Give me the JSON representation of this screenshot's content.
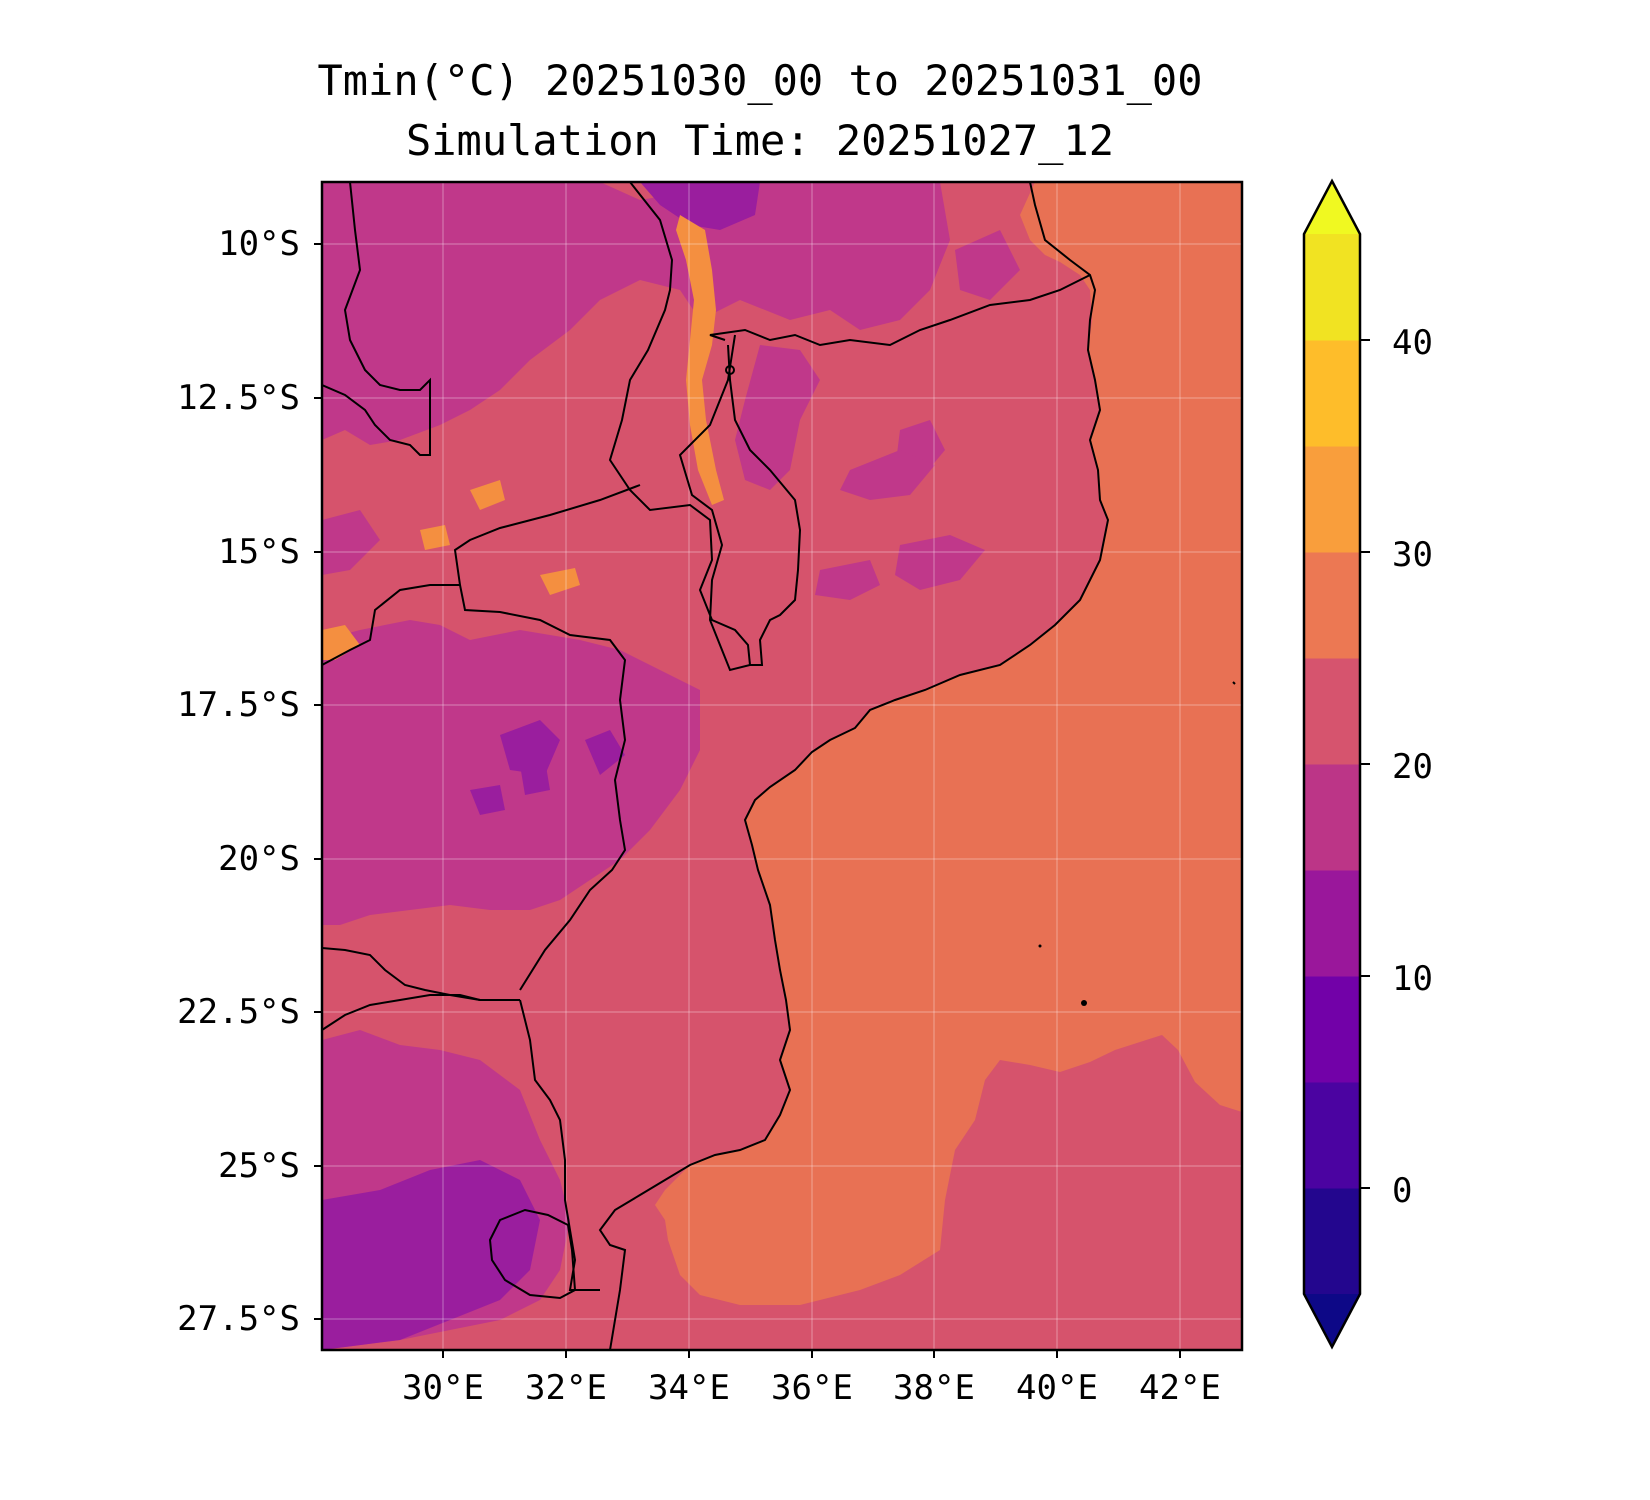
{
  "title": {
    "line1": "Tmin(°C) 20251030_00 to 20251031_00",
    "line2": "Simulation Time: 20251027_12"
  },
  "map": {
    "region": "Mozambique and surrounding southeast Africa",
    "lat_labels": [
      "10°S",
      "12.5°S",
      "15°S",
      "17.5°S",
      "20°S",
      "22.5°S",
      "25°S",
      "27.5°S"
    ],
    "lon_labels": [
      "30°E",
      "32°E",
      "34°E",
      "36°E",
      "38°E",
      "40°E",
      "42°E"
    ],
    "lon_range": [
      27.7,
      42.9
    ],
    "lat_range": [
      -9.0,
      -28.2
    ],
    "field_variable": "Tmin (°C)",
    "colors": {
      "lt20": "#9a1e9e",
      "band15_20": "#c0388a",
      "band20_25": "#d6536c",
      "band25_30": "#e87154",
      "band30_35": "#f48f40",
      "coastline": "#000000"
    }
  },
  "colorbar": {
    "ticks": [
      "0",
      "10",
      "20",
      "30",
      "40"
    ],
    "levels": [
      -5,
      0,
      5,
      10,
      15,
      20,
      25,
      30,
      35,
      40,
      45
    ],
    "band_colors": [
      "#23068e",
      "#4b03a1",
      "#7201a8",
      "#9a179b",
      "#bc3587",
      "#d6546e",
      "#ec7853",
      "#f99e3c",
      "#febd2a",
      "#f1e322"
    ],
    "under_color": "#0d0887",
    "over_color": "#f0f921",
    "extend": "both"
  }
}
